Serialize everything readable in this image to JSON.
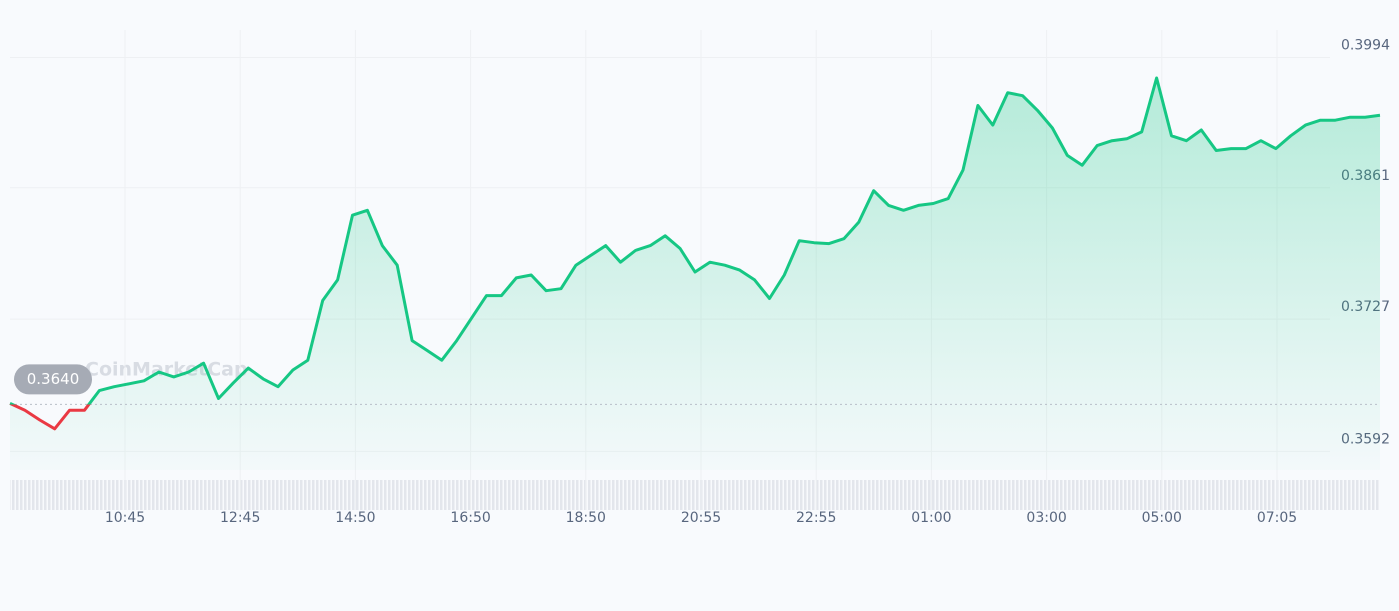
{
  "chart_data": {
    "type": "line",
    "watermark": "CoinMarketCap",
    "series": [
      {
        "color": "#16c784",
        "below_color": "#ea3943",
        "values": [
          0.3641,
          0.3634,
          0.3624,
          0.3615,
          0.3634,
          0.3634,
          0.3654,
          0.3658,
          0.3661,
          0.3664,
          0.3673,
          0.3668,
          0.3673,
          0.3682,
          0.3646,
          0.3662,
          0.3677,
          0.3666,
          0.3658,
          0.3675,
          0.3685,
          0.3746,
          0.3767,
          0.3833,
          0.3838,
          0.3802,
          0.3782,
          0.3705,
          0.3695,
          0.3685,
          0.3705,
          0.3728,
          0.3751,
          0.3751,
          0.3769,
          0.3772,
          0.3756,
          0.3758,
          0.3782,
          0.3792,
          0.3802,
          0.3785,
          0.3797,
          0.3802,
          0.3812,
          0.3799,
          0.3775,
          0.3785,
          0.3782,
          0.3777,
          0.3767,
          0.3748,
          0.3772,
          0.3807,
          0.3805,
          0.3804,
          0.3809,
          0.3826,
          0.3858,
          0.3843,
          0.3838,
          0.3843,
          0.3845,
          0.385,
          0.3879,
          0.3945,
          0.3925,
          0.3958,
          0.3955,
          0.394,
          0.3922,
          0.3894,
          0.3884,
          0.3904,
          0.3909,
          0.3911,
          0.3918,
          0.3973,
          0.3914,
          0.3909,
          0.392,
          0.3899,
          0.3901,
          0.3901,
          0.3909,
          0.3901,
          0.3914,
          0.3925,
          0.393,
          0.393,
          0.3933,
          0.3933,
          0.3935
        ]
      }
    ],
    "baseline": {
      "value": 0.364,
      "label": "0.3640"
    },
    "time_labels": [
      "10:45",
      "12:45",
      "14:50",
      "16:50",
      "18:50",
      "20:55",
      "22:55",
      "01:00",
      "03:00",
      "05:00",
      "07:05"
    ],
    "ylim": [
      0.3573,
      0.4022
    ],
    "yticks": [
      0.3592,
      0.3727,
      0.3861,
      0.3994
    ],
    "grid": true
  }
}
